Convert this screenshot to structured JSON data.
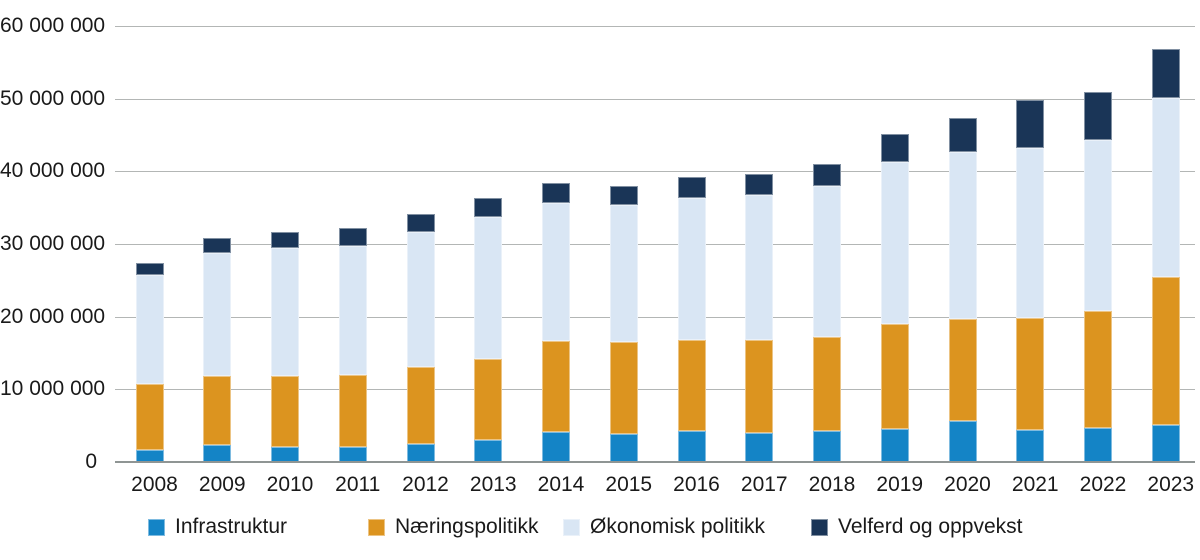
{
  "chart_data": {
    "type": "bar",
    "stacked": true,
    "title": "",
    "xlabel": "",
    "ylabel": "",
    "grid": "horizontal",
    "legend_position": "bottom",
    "ylim": [
      0,
      60000000
    ],
    "y_tick_labels": [
      "0",
      "10 000 000",
      "20 000 000",
      "30 000 000",
      "40 000 000",
      "50 000 000",
      "60 000 000"
    ],
    "y_tick_values": [
      0,
      10000000,
      20000000,
      30000000,
      40000000,
      50000000,
      60000000
    ],
    "categories": [
      "2008",
      "2009",
      "2010",
      "2011",
      "2012",
      "2013",
      "2014",
      "2015",
      "2016",
      "2017",
      "2018",
      "2019",
      "2020",
      "2021",
      "2022",
      "2023"
    ],
    "series": [
      {
        "name": "Infrastruktur",
        "color": "#1484C6",
        "values": [
          1600000,
          2300000,
          2000000,
          2100000,
          2500000,
          3000000,
          4100000,
          3900000,
          4300000,
          4000000,
          4300000,
          4500000,
          5600000,
          4400000,
          4700000,
          5100000
        ]
      },
      {
        "name": "Næringspolitikk",
        "color": "#DC941F",
        "values": [
          9100000,
          9500000,
          9800000,
          9900000,
          10600000,
          11200000,
          12500000,
          12600000,
          12500000,
          12800000,
          12900000,
          14500000,
          14100000,
          15400000,
          16100000,
          20300000
        ]
      },
      {
        "name": "Økonomisk politikk",
        "color": "#D9E6F4",
        "values": [
          15000000,
          16900000,
          17600000,
          17700000,
          18500000,
          19500000,
          19000000,
          18900000,
          19500000,
          19900000,
          20800000,
          22300000,
          22900000,
          23400000,
          23500000,
          24700000
        ]
      },
      {
        "name": "Velferd og oppvekst",
        "color": "#1A3557",
        "values": [
          1700000,
          2100000,
          2200000,
          2500000,
          2600000,
          2600000,
          2800000,
          2600000,
          2900000,
          2900000,
          3000000,
          3800000,
          4700000,
          6600000,
          6600000,
          6800000
        ]
      }
    ]
  },
  "layout_colors": {
    "gridline": "#b3b6b5",
    "axis_line": "#8f9594",
    "text": "#1a1a1a",
    "background": "#ffffff"
  },
  "legend": {
    "items": [
      "Infrastruktur",
      "Næringspolitikk",
      "Økonomisk politikk",
      "Velferd og oppvekst"
    ]
  }
}
